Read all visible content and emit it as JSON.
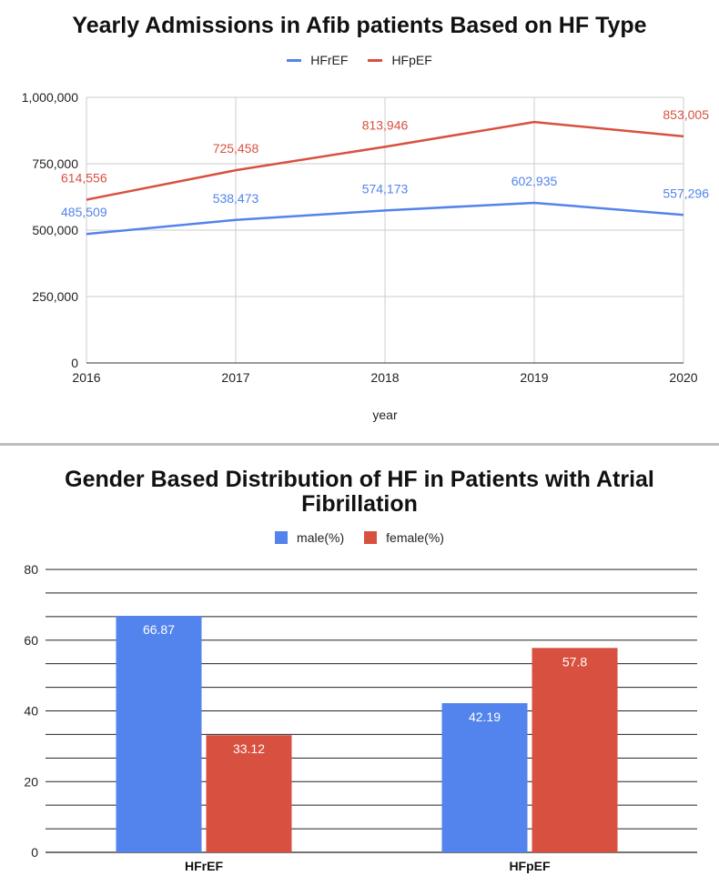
{
  "colors": {
    "hfref": "#5383ec",
    "hfpef": "#d85140",
    "male": "#5383ec",
    "female": "#d85140",
    "grid": "#cccccc",
    "axis": "#333333"
  },
  "chart_data": [
    {
      "type": "line",
      "title": "Yearly Admissions in Afib patients Based on HF Type",
      "xlabel": "year",
      "ylabel": "",
      "x": [
        "2016",
        "2017",
        "2018",
        "2019",
        "2020"
      ],
      "ylim": [
        0,
        1000000
      ],
      "yticks": [
        "0",
        "250,000",
        "500,000",
        "750,000",
        "1,000,000"
      ],
      "ytick_values": [
        0,
        250000,
        500000,
        750000,
        1000000
      ],
      "legend_position": "top-center",
      "series": [
        {
          "name": "HFrEF",
          "values": [
            485509,
            538473,
            574173,
            602935,
            557296
          ],
          "labels": [
            "485,509",
            "538,473",
            "574,173",
            "602,935",
            "557,296"
          ]
        },
        {
          "name": "HFpEF",
          "values": [
            614556,
            725458,
            813946,
            907000,
            853005
          ],
          "labels": [
            "614,556",
            "725,458",
            "813,946",
            "",
            "853,005"
          ]
        }
      ]
    },
    {
      "type": "bar",
      "title_lines": [
        "Gender Based Distribution of HF in Patients with Atrial",
        "Fibrillation"
      ],
      "categories": [
        "HFrEF",
        "HFpEF"
      ],
      "ylim": [
        0,
        80
      ],
      "yticks": [
        "0",
        "20",
        "40",
        "60",
        "80"
      ],
      "ytick_values": [
        0,
        20,
        40,
        60,
        80
      ],
      "minor_gridlines": true,
      "legend_position": "top-center",
      "series": [
        {
          "name": "male(%)",
          "values": [
            66.87,
            42.19
          ],
          "labels": [
            "66.87",
            "42.19"
          ]
        },
        {
          "name": "female(%)",
          "values": [
            33.12,
            57.8
          ],
          "labels": [
            "33.12",
            "57.8"
          ]
        }
      ]
    }
  ]
}
